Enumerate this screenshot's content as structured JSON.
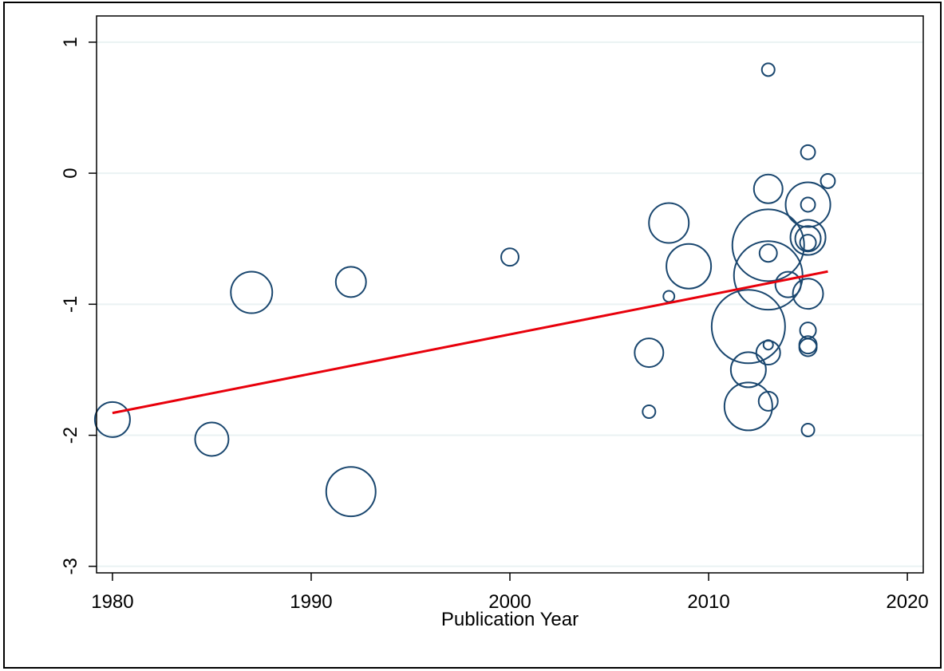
{
  "chart_data": {
    "type": "bubble",
    "x_label": "Publication Year",
    "xlim": [
      1979.2,
      2020.8
    ],
    "xticks": [
      1980,
      1990,
      2000,
      2010,
      2020
    ],
    "ylim": [
      -3.05,
      1.2
    ],
    "yticks": [
      -3,
      -2,
      -1,
      0,
      1
    ],
    "grid": true,
    "color": "#1a476f",
    "x": [
      1980,
      1985,
      1987,
      1992,
      1992,
      2000,
      2007,
      2007,
      2008,
      2008,
      2009,
      2012,
      2012,
      2012,
      2013,
      2013,
      2013,
      2013,
      2013,
      2013,
      2013,
      2013,
      2014,
      2015,
      2015,
      2015,
      2015,
      2015,
      2015,
      2015,
      2015,
      2015,
      2015,
      2015,
      2016
    ],
    "values": [
      -1.88,
      -2.03,
      -0.91,
      -0.83,
      -2.43,
      -0.64,
      -1.37,
      -1.82,
      -0.38,
      -0.94,
      -0.71,
      -1.17,
      -1.5,
      -1.78,
      0.79,
      -0.12,
      -0.55,
      -0.61,
      -0.78,
      -1.31,
      -1.37,
      -1.74,
      -0.85,
      0.16,
      -0.24,
      -0.24,
      -0.49,
      -0.5,
      -0.53,
      -0.92,
      -1.2,
      -1.31,
      -1.33,
      -1.96,
      -0.06
    ],
    "sizes": [
      121,
      110,
      169,
      90,
      240,
      30,
      81,
      16,
      156,
      12,
      196,
      529,
      121,
      225,
      16,
      81,
      506,
      30,
      462,
      9,
      56,
      36,
      64,
      20,
      196,
      20,
      121,
      64,
      25,
      90,
      25,
      30,
      30,
      16,
      20
    ],
    "fit_line": {
      "x": [
        1980,
        2016
      ],
      "values": [
        -1.83,
        -0.75
      ],
      "color": "#e8000b"
    }
  }
}
